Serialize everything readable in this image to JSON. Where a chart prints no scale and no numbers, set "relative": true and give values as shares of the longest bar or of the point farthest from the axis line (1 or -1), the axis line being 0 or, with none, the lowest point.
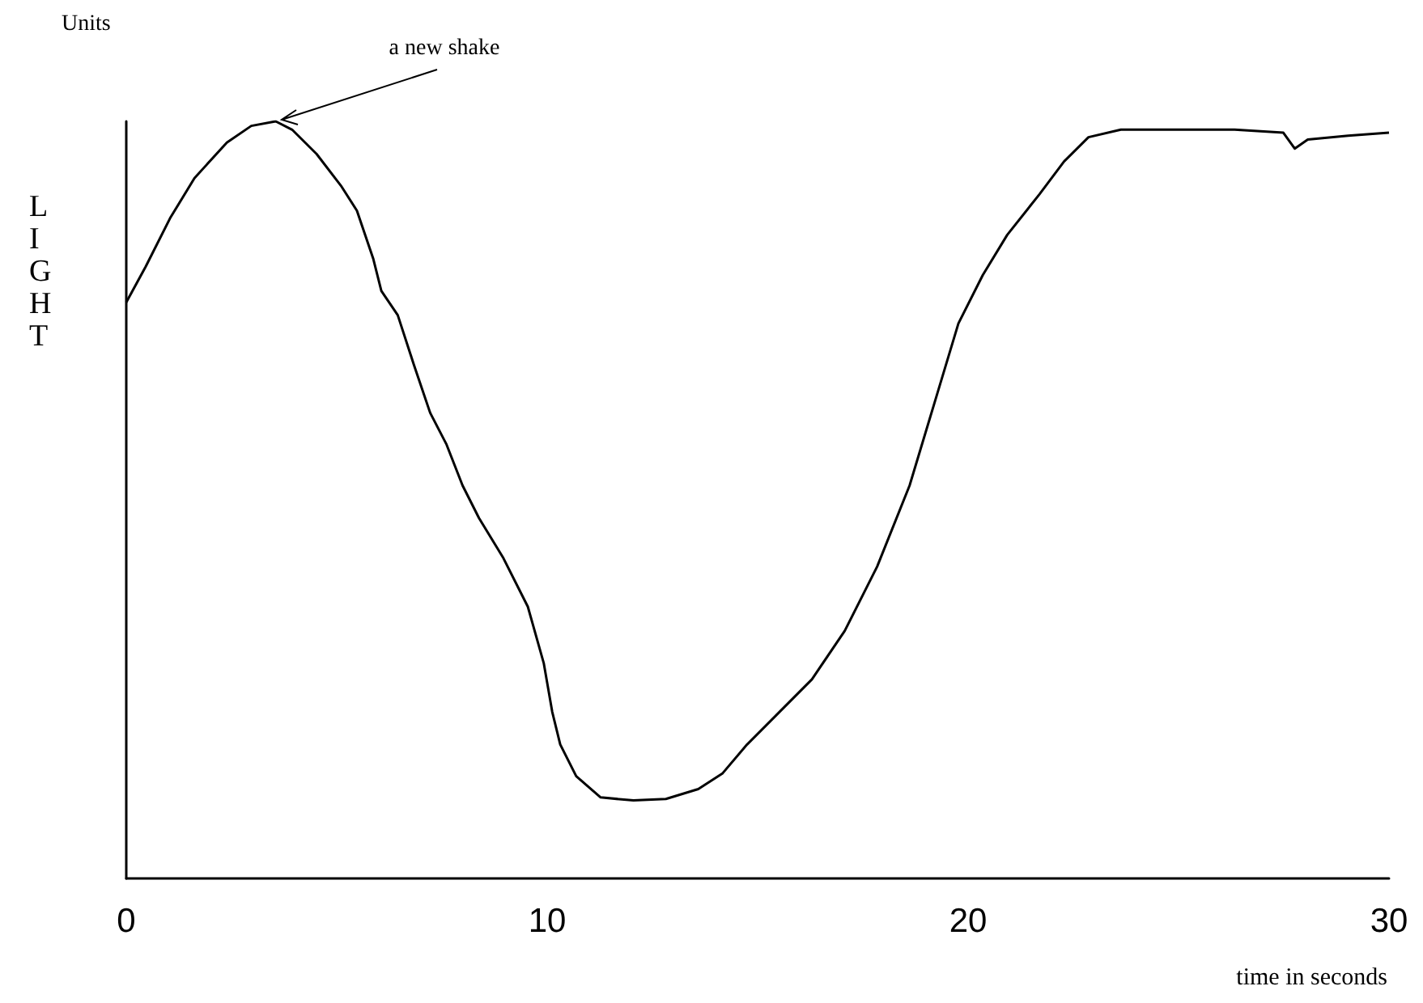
{
  "chart_data": {
    "type": "line",
    "relative": true,
    "xlabel": "time in seconds",
    "ylabel": "LIGHT",
    "annotations": [
      "Units",
      {
        "text": "a new shake",
        "x": 3.55,
        "y": 1
      }
    ],
    "xlim": [
      0,
      30
    ],
    "xticks": [
      0,
      10,
      20,
      30
    ],
    "grid": false,
    "marker": "none",
    "line_style": "solid",
    "series": [
      {
        "color": "#000000",
        "x": [
          0,
          0.46,
          1.04,
          1.62,
          2.39,
          2.97,
          3.55,
          3.94,
          4.52,
          5.1,
          5.48,
          5.87,
          6.06,
          6.45,
          6.83,
          7.22,
          7.61,
          7.99,
          8.38,
          8.96,
          9.54,
          9.92,
          10.12,
          10.31,
          10.69,
          11.27,
          12.05,
          12.82,
          13.59,
          14.17,
          14.75,
          15.52,
          16.29,
          17.07,
          17.84,
          18.61,
          19.19,
          19.77,
          20.35,
          20.93,
          21.7,
          22.28,
          22.86,
          23.63,
          24.79,
          26.33,
          27.49,
          27.76,
          28.07,
          29.03,
          30
        ],
        "values": [
          0.761,
          0.808,
          0.872,
          0.925,
          0.972,
          0.994,
          1,
          0.989,
          0.957,
          0.915,
          0.882,
          0.818,
          0.776,
          0.744,
          0.679,
          0.615,
          0.573,
          0.519,
          0.476,
          0.423,
          0.359,
          0.284,
          0.22,
          0.177,
          0.135,
          0.107,
          0.103,
          0.105,
          0.118,
          0.139,
          0.177,
          0.22,
          0.263,
          0.327,
          0.412,
          0.519,
          0.626,
          0.733,
          0.797,
          0.85,
          0.904,
          0.947,
          0.979,
          0.989,
          0.989,
          0.989,
          0.985,
          0.964,
          0.976,
          0.981,
          0.985
        ]
      }
    ]
  }
}
